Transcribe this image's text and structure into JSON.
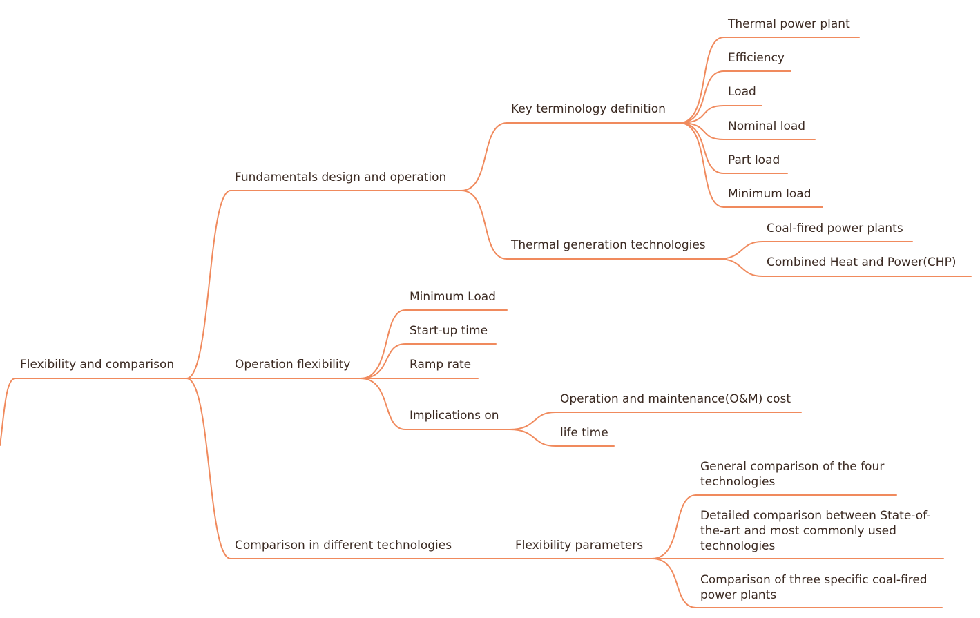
{
  "mindmap": {
    "line_color": "#f08a5d",
    "text_color": "#3b2a22",
    "root": "Flexibility and comparison",
    "branches": {
      "fundamentals": "Fundamentals design and operation",
      "operation": "Operation flexibility",
      "comparison": "Comparison in different technologies"
    },
    "fundamentals": {
      "key_terminology": "Key terminology definition",
      "terms": [
        "Thermal power plant",
        "Efficiency",
        "Load",
        "Nominal load",
        "Part load",
        "Minimum load"
      ],
      "thermal_generation": "Thermal generation technologies",
      "technologies": [
        "Coal-fired power plants",
        "Combined Heat and Power(CHP)"
      ]
    },
    "operation": {
      "items": [
        "Minimum Load",
        "Start-up time",
        "Ramp rate",
        "Implications on"
      ],
      "implications": [
        "Operation and maintenance(O&M) cost",
        "life time"
      ]
    },
    "comparison": {
      "flexibility_parameters": "Flexibility parameters",
      "items": [
        "General comparison of the four technologies",
        "Detailed comparison between State-of-the-art and most commonly used technologies",
        "Comparison of three specific coal-fired power plants"
      ]
    }
  }
}
